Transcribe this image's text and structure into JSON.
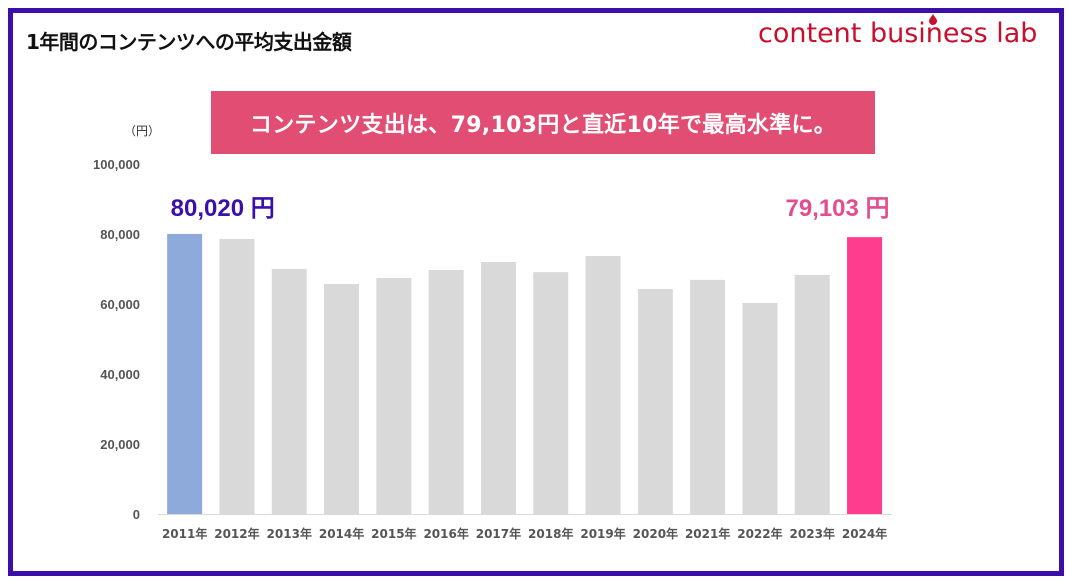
{
  "header": {
    "title": "1年間のコンテンツへの平均支出金額",
    "logo_text": "content business lab"
  },
  "banner": {
    "text": "コンテンツ支出は、79,103円と直近10年で最高水準に。"
  },
  "colors": {
    "frame": "#3a10a8",
    "banner": "#e24d73",
    "logo": "#c8102e",
    "first_bar": "#8eaadb",
    "last_bar": "#ff3d8e",
    "other_bars": "#d9d9d9",
    "first_callout": "#3a10a8",
    "last_callout": "#e24d8f"
  },
  "chart_data": {
    "type": "bar",
    "title": "1年間のコンテンツへの平均支出金額",
    "ylabel": "（円）",
    "xlabel": "",
    "ylim": [
      0,
      100000
    ],
    "yticks": [
      0,
      20000,
      40000,
      60000,
      80000,
      100000
    ],
    "ytick_labels": [
      "0",
      "20,000",
      "40,000",
      "60,000",
      "80,000",
      "100,000"
    ],
    "grid": false,
    "categories": [
      "2011年",
      "2012年",
      "2013年",
      "2014年",
      "2015年",
      "2016年",
      "2017年",
      "2018年",
      "2019年",
      "2020年",
      "2021年",
      "2022年",
      "2023年",
      "2024年"
    ],
    "values": [
      80020,
      78600,
      70000,
      65700,
      67400,
      69700,
      72000,
      69100,
      73700,
      64300,
      66900,
      60300,
      68300,
      79103
    ],
    "annotations": [
      {
        "category": "2011年",
        "text": "80,020 円"
      },
      {
        "category": "2024年",
        "text": "79,103 円"
      }
    ]
  }
}
